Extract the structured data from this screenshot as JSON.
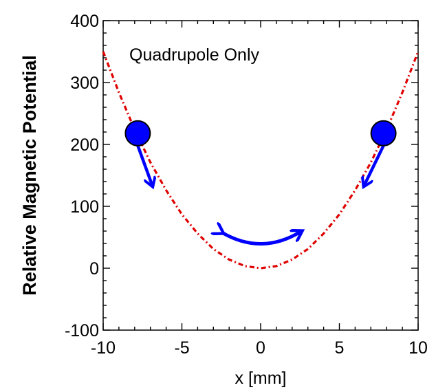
{
  "chart_data": {
    "type": "line",
    "title": "",
    "xlabel": "x [mm]",
    "ylabel": "Relative Magnetic Potential",
    "xlim": [
      -10,
      10
    ],
    "ylim": [
      -100,
      400
    ],
    "xticks": [
      -10,
      -5,
      0,
      5,
      10
    ],
    "yticks": [
      -100,
      0,
      100,
      200,
      300,
      400
    ],
    "xtick_labels": [
      "-10",
      "-5",
      "0",
      "5",
      "10"
    ],
    "ytick_labels": [
      "-100",
      "0",
      "100",
      "200",
      "300",
      "400"
    ],
    "grid": false,
    "annotation": "Quadrupole Only",
    "series": [
      {
        "style": "dash-dot",
        "color": "#e00000",
        "x": [
          -10,
          -9,
          -8,
          -7,
          -6,
          -5,
          -4,
          -3,
          -2,
          -1,
          0,
          1,
          2,
          3,
          4,
          5,
          6,
          7,
          8,
          9,
          10
        ],
        "y": [
          350,
          284,
          224,
          171,
          126,
          87,
          56,
          31,
          14,
          3.5,
          0,
          3.5,
          14,
          31,
          56,
          87,
          126,
          171,
          224,
          284,
          350
        ]
      }
    ],
    "particles": [
      {
        "x": -7.8,
        "y": 218,
        "color": "#0000ff",
        "arrow_to": {
          "x": -6.9,
          "y": 135
        }
      },
      {
        "x": 7.8,
        "y": 218,
        "color": "#0000ff",
        "arrow_to": {
          "x": 6.6,
          "y": 135
        }
      }
    ],
    "oscillation_arrow": {
      "from_x": -2.5,
      "to_x": 2.5,
      "y": 45,
      "color": "#0000ff"
    }
  }
}
